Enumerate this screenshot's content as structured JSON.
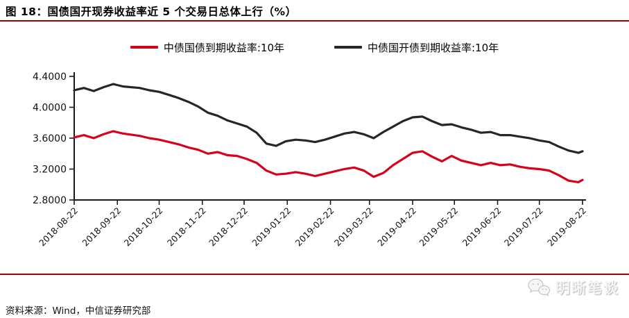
{
  "figure": {
    "title": "图 18：国债国开现券收益率近 5 个交易日总体上行（%）",
    "source": "资料来源：Wind，中信证券研究部",
    "watermark": "明晰笔谈",
    "accent_color": "#a00000",
    "axis_color": "#1a1a1a"
  },
  "legend": [
    {
      "label": "中债国债到期收益率:10年",
      "color": "#d9001b"
    },
    {
      "label": "中债国开债到期收益率:10年",
      "color": "#262626"
    }
  ],
  "chart_data": {
    "type": "line",
    "title": "国债国开现券收益率近 5 个交易日总体上行（%）",
    "xlabel": "",
    "ylabel": "",
    "ylim": [
      2.8,
      4.4
    ],
    "y_ticks": [
      2.8,
      3.2,
      3.6,
      4.0,
      4.4
    ],
    "y_tick_labels": [
      "2.8000",
      "3.2000",
      "3.6000",
      "4.0000",
      "4.4000"
    ],
    "x_tick_labels": [
      "2018-08-22",
      "2018-09-22",
      "2018-10-22",
      "2018-11-22",
      "2018-12-22",
      "2019-01-22",
      "2019-02-22",
      "2019-03-22",
      "2019-04-22",
      "2019-05-22",
      "2019-06-22",
      "2019-07-22",
      "2019-08-22"
    ],
    "grid": false,
    "legend_position": "top",
    "x": [
      "2018-08-22",
      "2018-08-29",
      "2018-09-05",
      "2018-09-12",
      "2018-09-19",
      "2018-09-26",
      "2018-10-08",
      "2018-10-15",
      "2018-10-22",
      "2018-10-29",
      "2018-11-05",
      "2018-11-12",
      "2018-11-19",
      "2018-11-26",
      "2018-12-03",
      "2018-12-10",
      "2018-12-17",
      "2018-12-24",
      "2018-12-31",
      "2019-01-07",
      "2019-01-14",
      "2019-01-21",
      "2019-01-28",
      "2019-02-04",
      "2019-02-11",
      "2019-02-18",
      "2019-02-25",
      "2019-03-04",
      "2019-03-11",
      "2019-03-18",
      "2019-03-25",
      "2019-04-01",
      "2019-04-08",
      "2019-04-15",
      "2019-04-22",
      "2019-04-29",
      "2019-05-06",
      "2019-05-13",
      "2019-05-20",
      "2019-05-27",
      "2019-06-03",
      "2019-06-10",
      "2019-06-17",
      "2019-06-24",
      "2019-07-01",
      "2019-07-08",
      "2019-07-15",
      "2019-07-22",
      "2019-07-29",
      "2019-08-05",
      "2019-08-12",
      "2019-08-19",
      "2019-08-22"
    ],
    "series": [
      {
        "name": "中债国债到期收益率:10年",
        "color": "#d9001b",
        "values": [
          3.61,
          3.64,
          3.6,
          3.65,
          3.69,
          3.66,
          3.63,
          3.6,
          3.58,
          3.55,
          3.52,
          3.48,
          3.45,
          3.4,
          3.42,
          3.38,
          3.37,
          3.33,
          3.28,
          3.18,
          3.13,
          3.14,
          3.16,
          3.14,
          3.11,
          3.14,
          3.17,
          3.2,
          3.22,
          3.18,
          3.1,
          3.15,
          3.25,
          3.33,
          3.41,
          3.43,
          3.36,
          3.3,
          3.37,
          3.31,
          3.28,
          3.25,
          3.28,
          3.25,
          3.26,
          3.23,
          3.21,
          3.2,
          3.18,
          3.12,
          3.05,
          3.03,
          3.06
        ]
      },
      {
        "name": "中债国开债到期收益率:10年",
        "color": "#262626",
        "values": [
          4.22,
          4.25,
          4.21,
          4.26,
          4.3,
          4.27,
          4.25,
          4.22,
          4.2,
          4.16,
          4.12,
          4.07,
          4.01,
          3.93,
          3.89,
          3.83,
          3.79,
          3.75,
          3.67,
          3.53,
          3.5,
          3.56,
          3.58,
          3.57,
          3.55,
          3.58,
          3.62,
          3.66,
          3.68,
          3.65,
          3.6,
          3.68,
          3.75,
          3.82,
          3.87,
          3.88,
          3.82,
          3.77,
          3.78,
          3.74,
          3.71,
          3.67,
          3.68,
          3.64,
          3.64,
          3.62,
          3.6,
          3.57,
          3.55,
          3.49,
          3.44,
          3.41,
          3.43
        ]
      }
    ]
  }
}
